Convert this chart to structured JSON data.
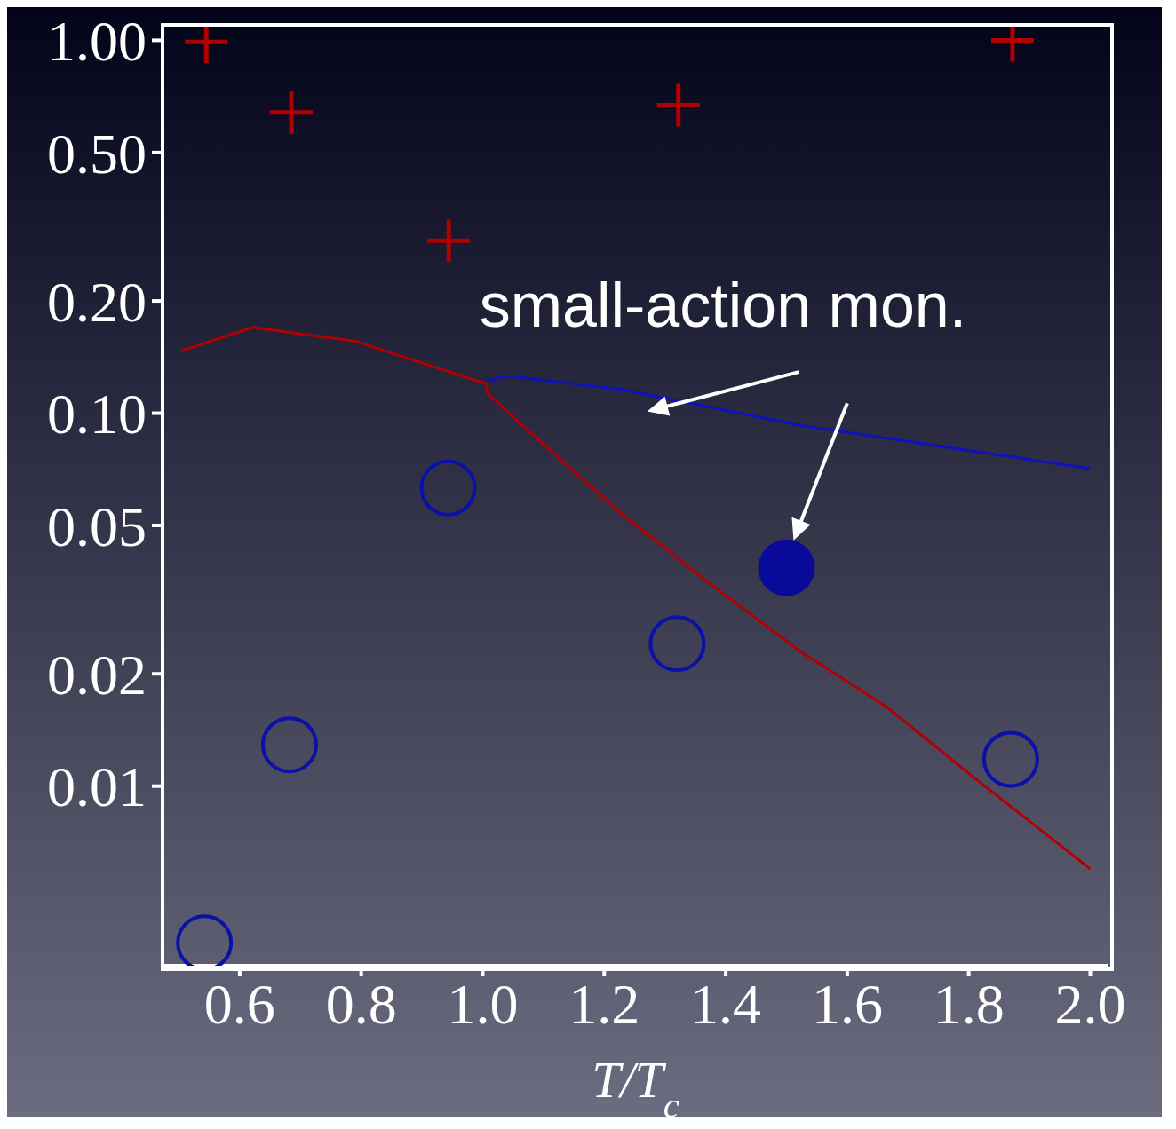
{
  "chart_data": {
    "type": "scatter",
    "xlabel": "T/T$_{c}$",
    "annotations": [
      "small-action mon."
    ],
    "xlim": [
      0.473,
      2.03
    ],
    "ylim": [
      0.0033,
      1.1
    ],
    "log": "y",
    "grid": false,
    "legend": false,
    "xticks": [
      0.6,
      0.8,
      {
        "value": 1.0,
        "label": "1.0"
      },
      1.2,
      1.4,
      1.6,
      1.8,
      {
        "value": 2.0,
        "label": "2.0"
      }
    ],
    "yticks": [
      {
        "value": 0.01,
        "label": "0.01"
      },
      {
        "value": 0.02,
        "label": "0.02"
      },
      {
        "value": 0.05,
        "label": "0.05"
      },
      {
        "value": 0.1,
        "label": "0.10"
      },
      {
        "value": 0.2,
        "label": "0.20"
      },
      {
        "value": 0.5,
        "label": "0.50"
      },
      {
        "value": 1,
        "label": "1.00"
      }
    ],
    "series": [
      {
        "marker": "cross",
        "color": "#b00000",
        "x": [
          0.545,
          0.685,
          0.944,
          1.322,
          1.872
        ],
        "values": [
          0.99,
          0.64,
          0.29,
          0.67,
          1.0
        ]
      },
      {
        "marker": "circle",
        "color": "#0a10a8",
        "x": [
          0.542,
          0.682,
          0.943,
          1.32,
          1.869
        ],
        "values": [
          0.0038,
          0.0129,
          0.063,
          0.0241,
          0.0118
        ]
      },
      {
        "marker": "circle",
        "color": "#0a0a9a",
        "x": [
          1.5
        ],
        "values": [
          0.0385
        ]
      },
      {
        "type": "line",
        "marker": "none",
        "color": "#b00000",
        "x": [
          0.504,
          0.622,
          0.79,
          1.005,
          1.008,
          1.081,
          1.227,
          1.373,
          1.519,
          1.665,
          1.81,
          2.0
        ],
        "values": [
          0.147,
          0.17,
          0.156,
          0.12,
          0.113,
          0.088,
          0.054,
          0.035,
          0.0232,
          0.0163,
          0.0105,
          0.006
        ]
      },
      {
        "type": "line",
        "marker": "none",
        "color": "#1010c0",
        "x": [
          1.008,
          1.037,
          1.227,
          1.519,
          1.81,
          2.0
        ],
        "values": [
          0.122,
          0.126,
          0.116,
          0.093,
          0.079,
          0.071
        ]
      }
    ]
  }
}
